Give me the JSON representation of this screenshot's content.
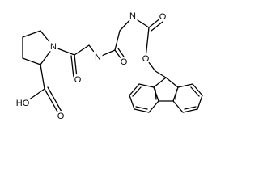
{
  "atoms": [
    {
      "label": "N"
    },
    {
      "label": "O"
    },
    {
      "label": "N"
    },
    {
      "label": "O"
    },
    {
      "label": "N"
    },
    {
      "label": "O"
    },
    {
      "label": "O"
    },
    {
      "label": "HO"
    },
    {
      "label": "O"
    }
  ]
}
